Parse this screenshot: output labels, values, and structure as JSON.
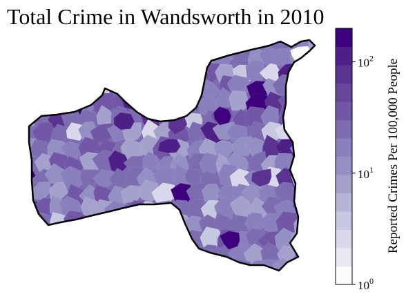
{
  "title": "Total Crime in Wandsworth in 2010",
  "colorbar": {
    "label": "Reported Crimes Per 100,000 People",
    "scale": "log",
    "range": [
      1,
      200
    ],
    "ticks": [
      {
        "value": 1,
        "base": "10",
        "exp": "0"
      },
      {
        "value": 10,
        "base": "10",
        "exp": "1"
      },
      {
        "value": 100,
        "base": "10",
        "exp": "2"
      }
    ],
    "colors": [
      "#fcfbfd",
      "#e9e7f1",
      "#d9d8ea",
      "#c7c8e2",
      "#b6b5d8",
      "#a4a1cd",
      "#9590c4",
      "#8a80bd",
      "#7e6cb0",
      "#7157a5",
      "#65469b",
      "#5a3290",
      "#4f1f88",
      "#3f007d"
    ]
  },
  "map": {
    "region": "Wandsworth",
    "boundary_color": "#000000",
    "palette": "Purples"
  }
}
